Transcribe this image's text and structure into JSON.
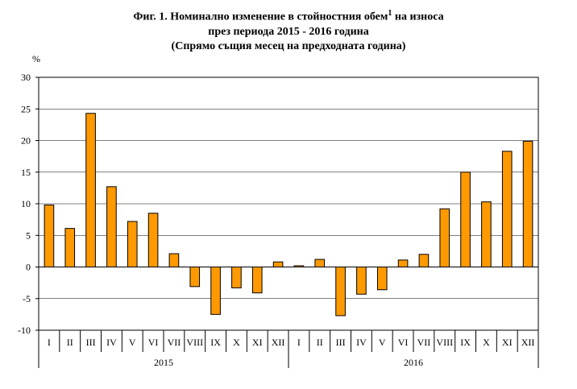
{
  "title": {
    "line1_main": "Фиг. 1. Номинално изменение в стойностния обем",
    "line1_sup": "1",
    "line1_tail": " на износа",
    "line2": "през периода 2015 - 2016 година",
    "line3": "(Спрямо същия месец на предходната година)"
  },
  "chart_data": {
    "type": "bar",
    "unit_label": "%",
    "ylim": [
      -10,
      30
    ],
    "yticks": [
      -10,
      -5,
      0,
      5,
      10,
      15,
      20,
      25,
      30
    ],
    "grid": true,
    "categories": [
      "I",
      "II",
      "III",
      "IV",
      "V",
      "VI",
      "VII",
      "VIII",
      "IX",
      "X",
      "XI",
      "XII",
      "I",
      "II",
      "III",
      "IV",
      "V",
      "VI",
      "VII",
      "VIII",
      "IX",
      "X",
      "XI",
      "XII"
    ],
    "groups": [
      {
        "label": "2015",
        "count": 12
      },
      {
        "label": "2016",
        "count": 12
      }
    ],
    "values": [
      9.8,
      6.1,
      24.3,
      12.7,
      7.2,
      8.5,
      2.1,
      -3.1,
      -7.5,
      -3.3,
      -4.1,
      0.8,
      0.2,
      1.2,
      -7.7,
      -4.3,
      -3.6,
      1.1,
      2.0,
      9.2,
      15.0,
      10.3,
      18.3,
      19.9
    ],
    "bar_color": "#FF9900"
  }
}
